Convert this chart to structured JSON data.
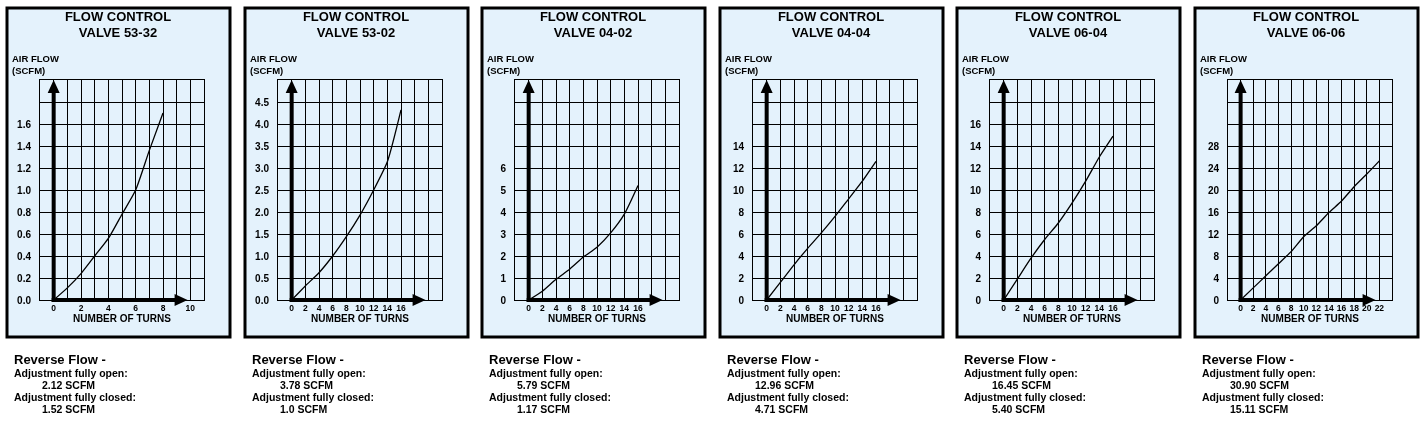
{
  "chart_data": [
    {
      "type": "line",
      "title": "FLOW CONTROL\nVALVE 53-32",
      "xlabel": "NUMBER OF TURNS",
      "ylabel": "AIR FLOW\n(SCFM)",
      "grid": true,
      "x": [
        0,
        1,
        2,
        3,
        4,
        5,
        6,
        7,
        8
      ],
      "series": [
        {
          "color": "#000000",
          "values": [
            0,
            0.11,
            0.24,
            0.4,
            0.56,
            0.78,
            1.0,
            1.36,
            1.7
          ]
        }
      ],
      "xlim": [
        -1,
        11
      ],
      "xticks": [
        {
          "value": -1,
          "label": null
        },
        0,
        {
          "value": 1,
          "label": null
        },
        2,
        {
          "value": 3,
          "label": null
        },
        4,
        {
          "value": 5,
          "label": null
        },
        6,
        {
          "value": 7,
          "label": null
        },
        8,
        {
          "value": 9,
          "label": null
        },
        10,
        {
          "value": 11,
          "label": null
        }
      ],
      "ylim": [
        0,
        2.0
      ],
      "yticks": [
        {
          "value": 0,
          "label": "0.0"
        },
        {
          "value": 0.2,
          "label": "0.2"
        },
        {
          "value": 0.4,
          "label": "0.4"
        },
        {
          "value": 0.6,
          "label": "0.6"
        },
        {
          "value": 0.8,
          "label": "0.8"
        },
        {
          "value": 1.0,
          "label": "1.0"
        },
        {
          "value": 1.2,
          "label": "1.2"
        },
        {
          "value": 1.4,
          "label": "1.4"
        },
        {
          "value": 1.6,
          "label": "1.6"
        },
        {
          "value": 1.8,
          "label": null
        },
        {
          "value": 2.0,
          "label": null
        }
      ],
      "annotations": [
        "Reverse Flow -",
        "Adjustment fully open:",
        "2.12 SCFM",
        "Adjustment fully closed:",
        "1.52 SCFM"
      ]
    },
    {
      "type": "line",
      "title": "FLOW CONTROL\nVALVE 53-02",
      "xlabel": "NUMBER OF TURNS",
      "ylabel": "AIR FLOW\n(SCFM)",
      "grid": true,
      "x": [
        0,
        2,
        4,
        6,
        8,
        10,
        12,
        14,
        16
      ],
      "series": [
        {
          "color": "#000000",
          "values": [
            0,
            0.32,
            0.62,
            1.0,
            1.44,
            1.93,
            2.5,
            3.14,
            4.32
          ]
        }
      ],
      "xlim": [
        -2,
        22
      ],
      "xticks": [
        {
          "value": -2,
          "label": null
        },
        0,
        2,
        4,
        6,
        8,
        10,
        12,
        14,
        16,
        {
          "value": 18,
          "label": null
        },
        {
          "value": 20,
          "label": null
        },
        {
          "value": 22,
          "label": null
        }
      ],
      "ylim": [
        0,
        5.0
      ],
      "yticks": [
        {
          "value": 0,
          "label": "0.0"
        },
        {
          "value": 0.5,
          "label": "0.5"
        },
        {
          "value": 1.0,
          "label": "1.0"
        },
        {
          "value": 1.5,
          "label": "1.5"
        },
        {
          "value": 2.0,
          "label": "2.0"
        },
        {
          "value": 2.5,
          "label": "2.5"
        },
        {
          "value": 3.0,
          "label": "3.0"
        },
        {
          "value": 3.5,
          "label": "3.5"
        },
        {
          "value": 4.0,
          "label": "4.0"
        },
        {
          "value": 4.5,
          "label": "4.5"
        },
        {
          "value": 5.0,
          "label": null
        }
      ],
      "annotations": [
        "Reverse Flow -",
        "Adjustment fully open:",
        "3.78 SCFM",
        "Adjustment fully closed:",
        "1.0 SCFM"
      ]
    },
    {
      "type": "line",
      "title": "FLOW CONTROL\nVALVE 04-02",
      "xlabel": "NUMBER OF TURNS",
      "ylabel": "AIR FLOW\n(SCFM)",
      "grid": true,
      "x": [
        0,
        2,
        4,
        6,
        8,
        10,
        12,
        14,
        16
      ],
      "series": [
        {
          "color": "#000000",
          "values": [
            0,
            0.4,
            0.94,
            1.4,
            1.95,
            2.4,
            3.05,
            3.9,
            5.2
          ]
        }
      ],
      "xlim": [
        -2,
        22
      ],
      "xticks": [
        {
          "value": -2,
          "label": null
        },
        0,
        2,
        4,
        6,
        8,
        10,
        12,
        14,
        16,
        {
          "value": 18,
          "label": null
        },
        {
          "value": 20,
          "label": null
        },
        {
          "value": 22,
          "label": null
        }
      ],
      "ylim": [
        0,
        10
      ],
      "yticks": [
        0,
        1,
        2,
        3,
        4,
        5,
        6,
        {
          "value": 7,
          "label": null
        },
        {
          "value": 8,
          "label": null
        },
        {
          "value": 9,
          "label": null
        },
        {
          "value": 10,
          "label": null
        }
      ],
      "annotations": [
        "Reverse Flow -",
        "Adjustment fully open:",
        "5.79 SCFM",
        "Adjustment fully closed:",
        "1.17 SCFM"
      ]
    },
    {
      "type": "line",
      "title": "FLOW CONTROL\nVALVE 04-04",
      "xlabel": "NUMBER OF TURNS",
      "ylabel": "AIR FLOW\n(SCFM)",
      "grid": true,
      "x": [
        0,
        2,
        4,
        6,
        8,
        10,
        12,
        14,
        16
      ],
      "series": [
        {
          "color": "#000000",
          "values": [
            0,
            1.6,
            3.2,
            4.7,
            6.1,
            7.6,
            9.2,
            10.8,
            12.6
          ]
        }
      ],
      "xlim": [
        -2,
        22
      ],
      "xticks": [
        {
          "value": -2,
          "label": null
        },
        0,
        2,
        4,
        6,
        8,
        10,
        12,
        14,
        16,
        {
          "value": 18,
          "label": null
        },
        {
          "value": 20,
          "label": null
        },
        {
          "value": 22,
          "label": null
        }
      ],
      "ylim": [
        0,
        20
      ],
      "yticks": [
        0,
        2,
        4,
        6,
        8,
        10,
        12,
        14,
        {
          "value": 16,
          "label": null
        },
        {
          "value": 18,
          "label": null
        },
        {
          "value": 20,
          "label": null
        }
      ],
      "annotations": [
        "Reverse Flow -",
        "Adjustment fully open:",
        "12.96 SCFM",
        "Adjustment fully closed:",
        "4.71 SCFM"
      ]
    },
    {
      "type": "line",
      "title": "FLOW CONTROL\nVALVE 06-04",
      "xlabel": "NUMBER OF TURNS",
      "ylabel": "AIR FLOW\n(SCFM)",
      "grid": true,
      "x": [
        0,
        2,
        4,
        6,
        8,
        10,
        12,
        14,
        16
      ],
      "series": [
        {
          "color": "#000000",
          "values": [
            0,
            1.9,
            3.8,
            5.5,
            7.0,
            8.8,
            10.8,
            13.0,
            14.9
          ]
        }
      ],
      "xlim": [
        -2,
        22
      ],
      "xticks": [
        {
          "value": -2,
          "label": null
        },
        0,
        2,
        4,
        6,
        8,
        10,
        12,
        14,
        16,
        {
          "value": 18,
          "label": null
        },
        {
          "value": 20,
          "label": null
        },
        {
          "value": 22,
          "label": null
        }
      ],
      "ylim": [
        0,
        20
      ],
      "yticks": [
        0,
        2,
        4,
        6,
        8,
        10,
        12,
        14,
        16,
        {
          "value": 18,
          "label": null
        },
        {
          "value": 20,
          "label": null
        }
      ],
      "annotations": [
        "Reverse Flow -",
        "Adjustment fully open:",
        "16.45 SCFM",
        "Adjustment fully closed:",
        "5.40 SCFM"
      ]
    },
    {
      "type": "line",
      "title": "FLOW CONTROL\nVALVE 06-06",
      "xlabel": "NUMBER OF TURNS",
      "ylabel": "AIR FLOW\n(SCFM)",
      "grid": true,
      "x": [
        0,
        2,
        4,
        6,
        8,
        10,
        12,
        14,
        16,
        18,
        20,
        22
      ],
      "series": [
        {
          "color": "#000000",
          "values": [
            0,
            2.2,
            4.4,
            6.6,
            8.8,
            11.5,
            13.5,
            15.9,
            18.0,
            20.6,
            22.9,
            25.3
          ]
        }
      ],
      "xlim": [
        -2,
        24
      ],
      "xticks": [
        {
          "value": -2,
          "label": null
        },
        0,
        2,
        4,
        6,
        8,
        10,
        12,
        14,
        16,
        18,
        20,
        22,
        {
          "value": 24,
          "label": null
        }
      ],
      "ylim": [
        0,
        40
      ],
      "yticks": [
        0,
        4,
        8,
        12,
        16,
        20,
        24,
        28,
        {
          "value": 32,
          "label": null
        },
        {
          "value": 36,
          "label": null
        },
        {
          "value": 40,
          "label": null
        }
      ],
      "annotations": [
        "Reverse Flow -",
        "Adjustment fully open:",
        "30.90 SCFM",
        "Adjustment fully closed:",
        "15.11 SCFM"
      ]
    }
  ]
}
